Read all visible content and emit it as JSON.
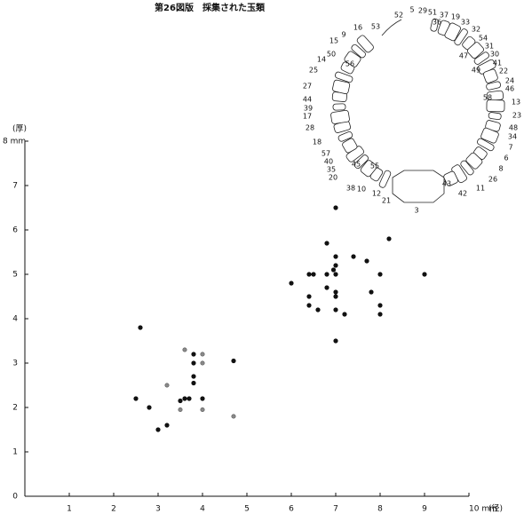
{
  "chart_data": {
    "type": "scatter",
    "title": "第26図版　採集された玉類",
    "x_label": "(径)",
    "y_label": "(厚)",
    "xlim": [
      0,
      10
    ],
    "ylim": [
      0,
      8
    ],
    "xticks": [
      1,
      2,
      3,
      4,
      5,
      6,
      7,
      8,
      9,
      {
        "value": 10,
        "label": "10 mm"
      }
    ],
    "yticks": [
      0,
      1,
      2,
      3,
      4,
      5,
      6,
      7,
      {
        "value": 8,
        "label": "8 mm"
      }
    ],
    "series": [
      {
        "color": "#111111",
        "x": [
          2.6,
          2.5,
          2.8,
          3.0,
          3.2,
          3.5,
          3.6,
          3.7,
          3.8,
          3.8,
          3.8,
          3.8,
          4.0,
          4.7,
          7.0,
          8.2,
          6.8,
          7.0,
          7.4,
          7.0,
          7.7,
          6.4,
          6.5,
          6.8,
          7.0,
          6.95,
          8.0,
          9.0,
          6.0,
          6.8,
          7.0,
          6.4,
          7.0,
          7.8,
          6.4,
          6.6,
          7.0,
          7.2,
          8.0,
          8.0,
          7.0
        ],
        "values": [
          3.8,
          2.2,
          2.0,
          1.5,
          1.6,
          2.15,
          2.2,
          2.2,
          3.2,
          3.0,
          2.7,
          2.55,
          2.2,
          3.05,
          6.5,
          5.8,
          5.7,
          5.4,
          5.4,
          5.2,
          5.3,
          5.0,
          5.0,
          5.0,
          5.0,
          5.1,
          5.0,
          5.0,
          4.8,
          4.7,
          4.6,
          4.5,
          4.5,
          4.6,
          4.3,
          4.2,
          4.2,
          4.1,
          4.3,
          4.1,
          3.5
        ]
      },
      {
        "color": "#8a8a8a",
        "x": [
          3.2,
          3.5,
          3.6,
          4.0,
          4.0,
          4.0,
          4.7
        ],
        "values": [
          2.5,
          1.95,
          3.3,
          3.2,
          3.0,
          1.95,
          1.8
        ]
      }
    ]
  },
  "diagram": {
    "labels": [
      "52",
      "5",
      "29",
      "51",
      "37",
      "19",
      "36",
      "33",
      "32",
      "54",
      "31",
      "30",
      "47",
      "41",
      "49",
      "22",
      "24",
      "46",
      "58",
      "13",
      "23",
      "48",
      "34",
      "7",
      "6",
      "8",
      "26",
      "11",
      "42",
      "43",
      "3",
      "21",
      "12",
      "10",
      "38",
      "55",
      "45",
      "20",
      "35",
      "40",
      "57",
      "18",
      "28",
      "17",
      "39",
      "44",
      "27",
      "25",
      "14",
      "50",
      "56",
      "15",
      "9",
      "16",
      "53"
    ]
  }
}
